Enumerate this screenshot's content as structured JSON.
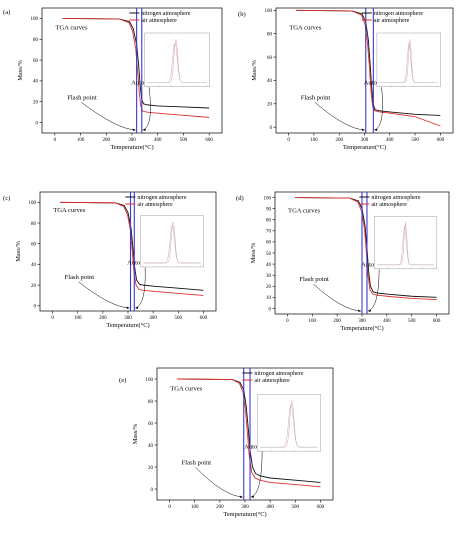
{
  "chart_data": [
    {
      "panel_label": "(a)",
      "type": "line",
      "xlabel": "Temperature(°C)",
      "ylabel": "Mass/%",
      "xlim": [
        -50,
        650
      ],
      "ylim": [
        -10,
        110
      ],
      "xticks": [
        0,
        100,
        200,
        300,
        400,
        500,
        600
      ],
      "yticks": [
        0,
        20,
        40,
        60,
        80,
        100
      ],
      "legend_position": "top-right",
      "series": [
        {
          "name": "nitrogen atmosphere",
          "color": "#111111",
          "x": [
            30,
            250,
            290,
            305,
            318,
            326,
            332,
            338,
            345,
            360,
            400,
            500,
            600
          ],
          "y": [
            100,
            99.5,
            97,
            90,
            75,
            55,
            35,
            22,
            18,
            17,
            16,
            15,
            14
          ]
        },
        {
          "name": "air atmosphere",
          "color": "#e03030",
          "x": [
            30,
            250,
            288,
            302,
            314,
            322,
            328,
            334,
            342,
            360,
            400,
            500,
            600
          ],
          "y": [
            100,
            99.5,
            96,
            88,
            72,
            50,
            30,
            16,
            11,
            10,
            9,
            7,
            5
          ]
        }
      ],
      "flash_point": 318,
      "auto_ignition": 338,
      "annotations": {
        "curves": "TGA curves",
        "flash": "Flash point",
        "auto": "Auto-ignition temperature"
      },
      "inset": {
        "peak": 0.48,
        "width": 0.045,
        "ylabel": "",
        "xlabel": ""
      }
    },
    {
      "panel_label": "(b)",
      "type": "line",
      "xlabel": "Temperature(°C)",
      "ylabel": "Mass/%",
      "xlim": [
        -50,
        650
      ],
      "ylim": [
        -5,
        102
      ],
      "xticks": [
        0,
        100,
        200,
        300,
        400,
        500,
        600
      ],
      "yticks": [
        0,
        20,
        40,
        60,
        80,
        100
      ],
      "legend_position": "top-right",
      "series": [
        {
          "name": "nitrogen atmosphere",
          "color": "#111111",
          "x": [
            30,
            250,
            290,
            305,
            315,
            322,
            328,
            334,
            342,
            360,
            400,
            500,
            600
          ],
          "y": [
            100,
            99.5,
            97,
            90,
            75,
            55,
            35,
            20,
            15,
            14,
            13,
            11,
            10
          ]
        },
        {
          "name": "air atmosphere",
          "color": "#e03030",
          "x": [
            30,
            250,
            288,
            302,
            312,
            320,
            326,
            332,
            340,
            360,
            400,
            500,
            600
          ],
          "y": [
            100,
            99.5,
            96,
            88,
            72,
            50,
            30,
            18,
            14,
            13,
            12,
            9,
            1
          ]
        }
      ],
      "flash_point": 305,
      "auto_ignition": 335,
      "annotations": {
        "curves": "TGA curves",
        "flash": "Flash point",
        "auto": "Auto-ignition temperature"
      },
      "inset": {
        "peak": 0.52,
        "width": 0.035,
        "ylabel": "",
        "xlabel": ""
      }
    },
    {
      "panel_label": "(c)",
      "type": "line",
      "xlabel": "Temperature(°C)",
      "ylabel": "Mass/%",
      "xlim": [
        -50,
        650
      ],
      "ylim": [
        -5,
        110
      ],
      "xticks": [
        0,
        100,
        200,
        300,
        400,
        500,
        600
      ],
      "yticks": [
        0,
        20,
        40,
        60,
        80,
        100
      ],
      "legend_position": "top-right",
      "series": [
        {
          "name": "nitrogen atmosphere",
          "color": "#111111",
          "x": [
            30,
            250,
            285,
            300,
            312,
            320,
            326,
            334,
            345,
            360,
            400,
            500,
            600
          ],
          "y": [
            100,
            99.5,
            97,
            90,
            75,
            55,
            38,
            25,
            21,
            20,
            19,
            17,
            15
          ]
        },
        {
          "name": "air atmosphere",
          "color": "#e03030",
          "x": [
            30,
            250,
            283,
            298,
            310,
            318,
            324,
            332,
            343,
            360,
            400,
            500,
            600
          ],
          "y": [
            100,
            99.5,
            96,
            88,
            72,
            50,
            32,
            20,
            16,
            15,
            14,
            12,
            10
          ]
        }
      ],
      "flash_point": 310,
      "auto_ignition": 325,
      "annotations": {
        "curves": "TGA curves",
        "flash": "Flash point",
        "auto": "Auto-ignition temperature"
      },
      "inset": {
        "peak": 0.52,
        "width": 0.045,
        "ylabel": "",
        "xlabel": ""
      }
    },
    {
      "panel_label": "(d)",
      "type": "line",
      "xlabel": "Temperature(°C)",
      "ylabel": "Mass/%",
      "xlim": [
        -50,
        650
      ],
      "ylim": [
        -5,
        105
      ],
      "xticks": [
        0,
        100,
        200,
        300,
        400,
        500,
        600
      ],
      "yticks": [
        0,
        10,
        20,
        30,
        40,
        50,
        60,
        70,
        80,
        90,
        100
      ],
      "legend_position": "top-right",
      "series": [
        {
          "name": "nitrogen atmosphere",
          "color": "#111111",
          "x": [
            30,
            250,
            285,
            300,
            312,
            320,
            326,
            334,
            345,
            360,
            400,
            500,
            600
          ],
          "y": [
            100,
            99.5,
            97,
            90,
            75,
            55,
            35,
            20,
            15,
            14,
            13,
            11,
            10
          ]
        },
        {
          "name": "air atmosphere",
          "color": "#e03030",
          "x": [
            30,
            250,
            283,
            298,
            310,
            318,
            324,
            332,
            343,
            360,
            400,
            500,
            600
          ],
          "y": [
            100,
            99.5,
            96,
            88,
            72,
            50,
            30,
            17,
            13,
            12,
            11,
            9,
            8
          ]
        }
      ],
      "flash_point": 300,
      "auto_ignition": 320,
      "annotations": {
        "curves": "TGA curves",
        "flash": "Flash point",
        "auto": "Auto-ignition temperature"
      },
      "inset": {
        "peak": 0.5,
        "width": 0.035,
        "ylabel": "",
        "xlabel": ""
      }
    },
    {
      "panel_label": "(e)",
      "type": "line",
      "xlabel": "Temperature(°C)",
      "ylabel": "Mass/%",
      "xlim": [
        -50,
        650
      ],
      "ylim": [
        -10,
        110
      ],
      "xticks": [
        0,
        100,
        200,
        300,
        400,
        500,
        600
      ],
      "yticks": [
        0,
        20,
        40,
        60,
        80,
        100
      ],
      "legend_position": "top-right",
      "series": [
        {
          "name": "nitrogen atmosphere",
          "color": "#111111",
          "x": [
            30,
            250,
            280,
            295,
            305,
            313,
            320,
            330,
            342,
            360,
            400,
            500,
            600
          ],
          "y": [
            100,
            99.5,
            97,
            90,
            75,
            55,
            35,
            20,
            14,
            12,
            10,
            8,
            6
          ]
        },
        {
          "name": "air atmosphere",
          "color": "#e03030",
          "x": [
            30,
            250,
            278,
            292,
            302,
            310,
            317,
            327,
            340,
            360,
            400,
            500,
            600
          ],
          "y": [
            100,
            99.5,
            96,
            88,
            72,
            50,
            30,
            15,
            10,
            8,
            6,
            4,
            2
          ]
        }
      ],
      "flash_point": 295,
      "auto_ignition": 320,
      "annotations": {
        "curves": "TGA curves",
        "flash": "Flash point",
        "auto": "Auto-ignition temperature"
      },
      "inset": {
        "peak": 0.55,
        "width": 0.05,
        "ylabel": "",
        "xlabel": ""
      }
    }
  ]
}
